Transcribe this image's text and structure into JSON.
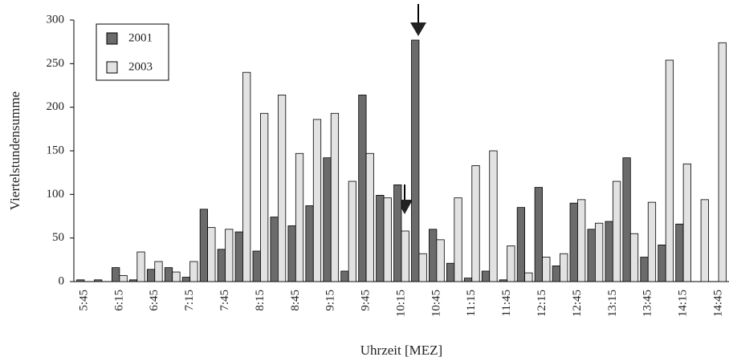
{
  "chart_data": {
    "type": "bar",
    "x_label": "Uhrzeit [MEZ]",
    "y_label": "Viertelstundensumme",
    "categories": [
      "5:45",
      null,
      "6:15",
      null,
      "6:45",
      null,
      "7:15",
      null,
      "7:45",
      null,
      "8:15",
      null,
      "8:45",
      null,
      "9:15",
      null,
      "9:45",
      null,
      "10:15",
      null,
      "10:45",
      null,
      "11:15",
      null,
      "11:45",
      null,
      "12:15",
      null,
      "12:45",
      null,
      "13:15",
      null,
      "13:45",
      null,
      "14:15",
      null,
      "14:45"
    ],
    "series": [
      {
        "name": "2001",
        "color": "#6b6b6b",
        "values": [
          2,
          2,
          16,
          2,
          14,
          16,
          5,
          83,
          37,
          57,
          35,
          74,
          64,
          87,
          142,
          12,
          214,
          99,
          111,
          277,
          60,
          21,
          4,
          12,
          2,
          85,
          108,
          18,
          90,
          60,
          69,
          142,
          28,
          42,
          66,
          0,
          0
        ]
      },
      {
        "name": "2003",
        "color": "#e2e2e2",
        "values": [
          0,
          0,
          7,
          34,
          23,
          11,
          23,
          62,
          60,
          240,
          193,
          214,
          147,
          186,
          193,
          115,
          147,
          96,
          58,
          32,
          48,
          96,
          133,
          150,
          41,
          10,
          28,
          32,
          94,
          67,
          115,
          55,
          91,
          254,
          135,
          94,
          274
        ]
      }
    ],
    "ylim": [
      0,
      300
    ],
    "yticks": [
      0,
      50,
      100,
      150,
      200,
      250,
      300
    ],
    "grid": false,
    "legend": "upper-left"
  }
}
